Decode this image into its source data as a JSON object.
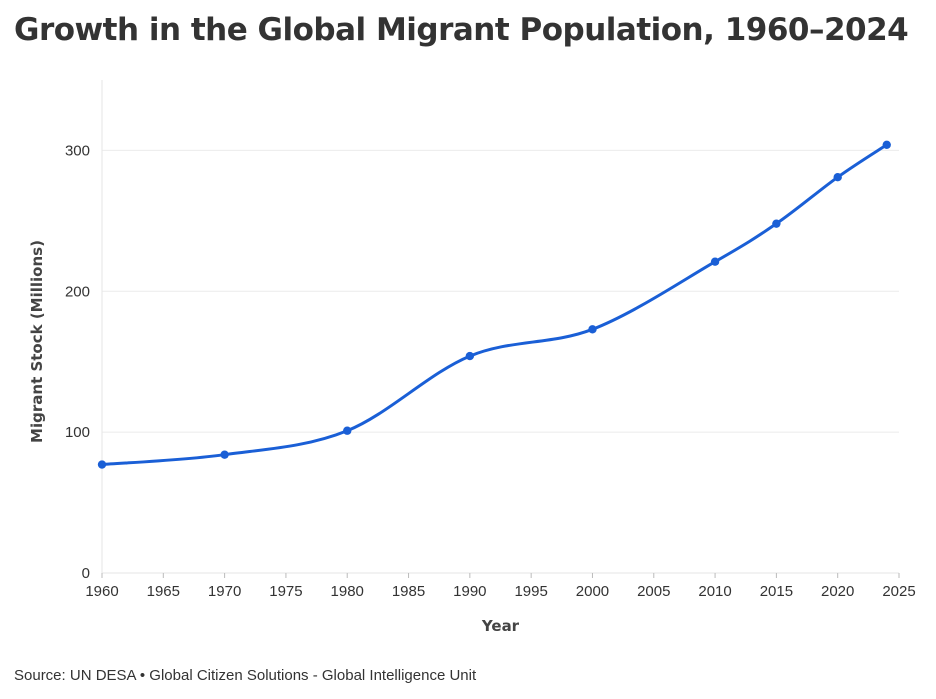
{
  "title": "Growth in the Global Migrant Population, 1960–2024",
  "source": "Source: UN DESA • Global Citizen Solutions - Global Intelligence Unit",
  "chart_data": {
    "type": "line",
    "title": "Growth in the Global Migrant Population, 1960–2024",
    "xlabel": "Year",
    "ylabel": "Migrant Stock (Millions)",
    "xlim": [
      1960,
      2025
    ],
    "ylim": [
      0,
      350
    ],
    "x_ticks": [
      1960,
      1965,
      1970,
      1975,
      1980,
      1985,
      1990,
      1995,
      2000,
      2005,
      2010,
      2015,
      2020,
      2025
    ],
    "y_ticks": [
      0,
      100,
      200,
      300
    ],
    "grid": true,
    "legend": "none",
    "series": [
      {
        "color": "#1a5fd6",
        "x": [
          1960,
          1970,
          1980,
          1990,
          2000,
          2010,
          2015,
          2020,
          2024
        ],
        "y": [
          77,
          84,
          101,
          154,
          173,
          221,
          248,
          281,
          304
        ]
      }
    ]
  }
}
